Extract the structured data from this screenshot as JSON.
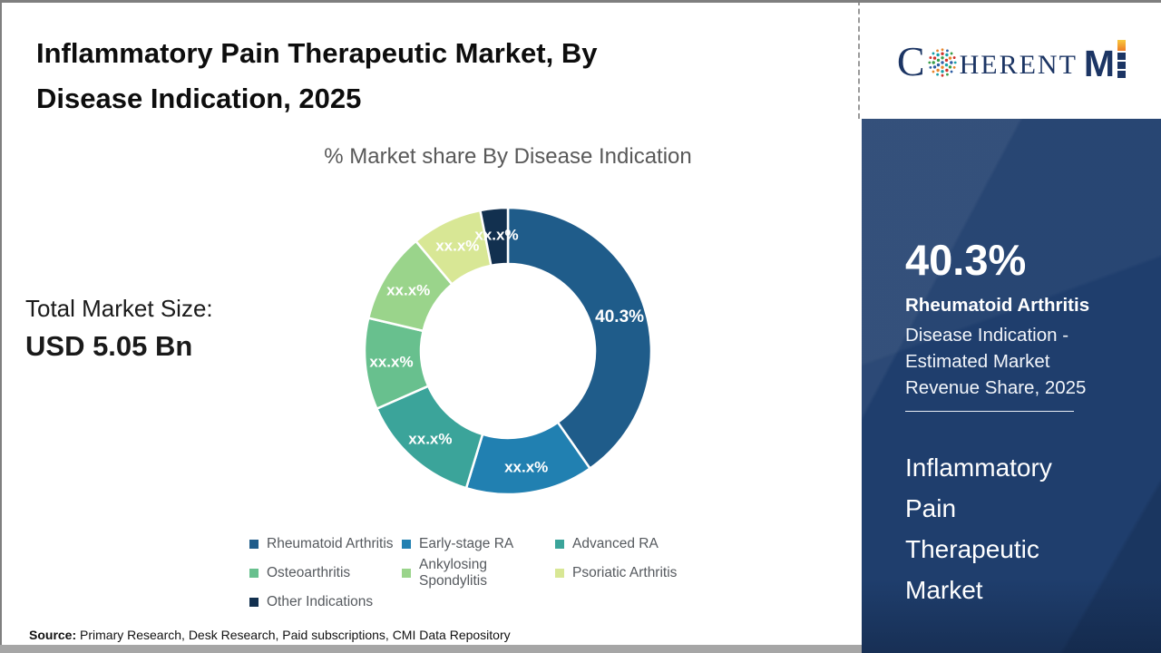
{
  "page": {
    "title_line1": "Inflammatory Pain Therapeutic Market, By",
    "title_line2": "Disease Indication, 2025",
    "subtitle": "% Market share By Disease Indication",
    "total_label": "Total Market Size:",
    "total_value": "USD 5.05 Bn",
    "source_label": "Source:",
    "source_text": " Primary Research, Desk Research, Paid subscriptions, CMI Data Repository"
  },
  "logo": {
    "part_c": "C",
    "part_herent": "HERENT",
    "part_m": "M"
  },
  "side_panel": {
    "stat_value": "40.3%",
    "stat_title": "Rheumatoid Arthritis",
    "stat_desc_lines": [
      "Disease Indication -",
      "Estimated Market",
      "Revenue Share, 2025"
    ],
    "market_name_lines": [
      "Inflammatory",
      "Pain",
      "Therapeutic",
      "Market"
    ],
    "bg_color": "#1f3e6d"
  },
  "chart_data": {
    "type": "pie",
    "donut": true,
    "title": "% Market share By Disease Indication",
    "categories": [
      "Rheumatoid Arthritis",
      "Early-stage RA",
      "Advanced RA",
      "Osteoarthritis",
      "Ankylosing Spondylitis",
      "Psoriatic Arthritis",
      "Other Indications"
    ],
    "values": [
      40.3,
      14.4,
      13.7,
      10.3,
      10.2,
      8.0,
      3.1
    ],
    "value_labels": [
      "40.3%",
      "xx.x%",
      "xx.x%",
      "xx.x%",
      "xx.x%",
      "xx.x%",
      "xx.x%"
    ],
    "colors": [
      "#1f5c8a",
      "#2180b1",
      "#3ba49a",
      "#68c08e",
      "#9ad48b",
      "#d8e795",
      "#12304f"
    ],
    "legend_position": "bottom",
    "start_angle_deg": 0,
    "inner_radius_ratio": 0.61
  }
}
